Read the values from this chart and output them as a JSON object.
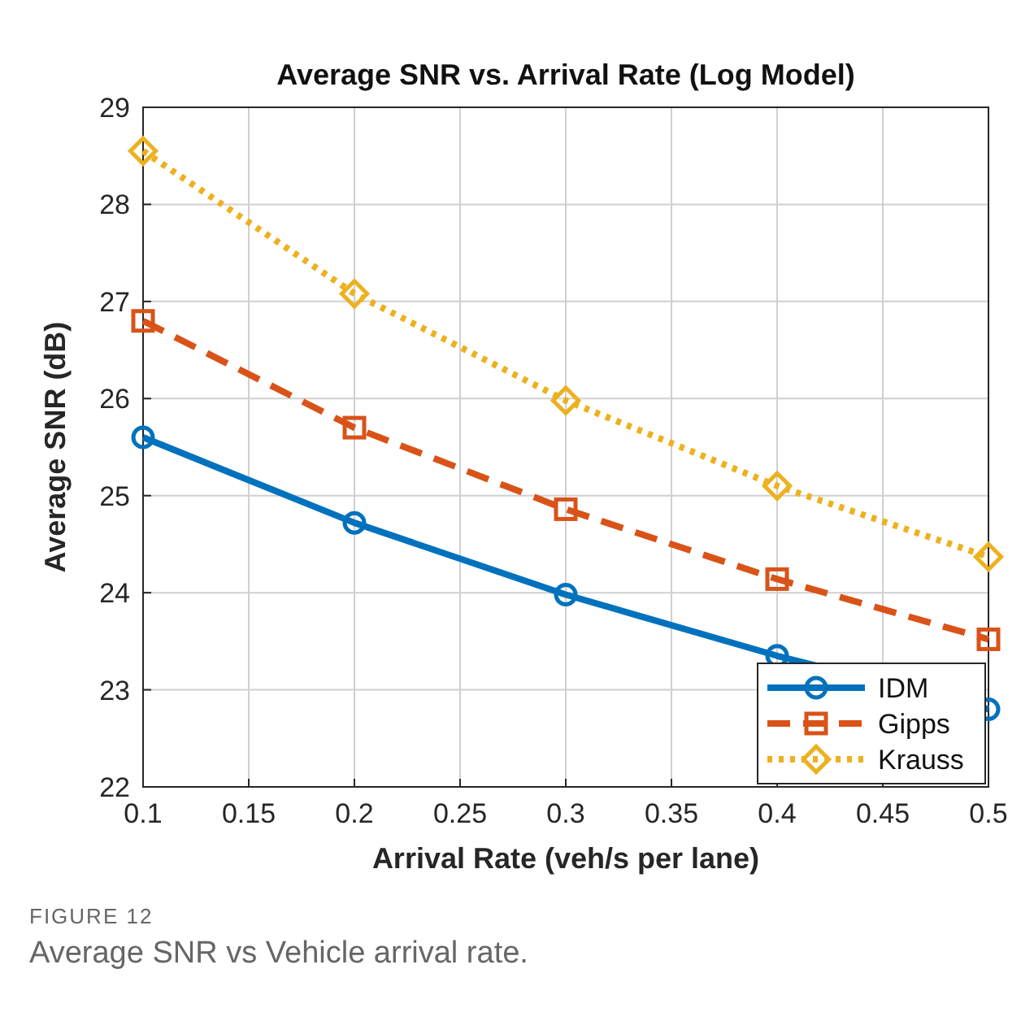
{
  "chart_data": {
    "type": "line",
    "title": "Average SNR vs. Arrival Rate (Log Model)",
    "xlabel": "Arrival Rate (veh/s per lane)",
    "ylabel": "Average SNR (dB)",
    "annotations": [
      "FIGURE 12",
      "Average SNR vs Vehicle arrival rate."
    ],
    "x": [
      0.1,
      0.2,
      0.3,
      0.4,
      0.5
    ],
    "xlim": [
      0.1,
      0.5
    ],
    "xticks": [
      0.1,
      0.15,
      0.2,
      0.25,
      0.3,
      0.35,
      0.4,
      0.45,
      0.5
    ],
    "ylim": [
      22,
      29
    ],
    "yticks": [
      22,
      23,
      24,
      25,
      26,
      27,
      28,
      29
    ],
    "grid": true,
    "legend": "bottom right",
    "series": [
      {
        "name": "IDM",
        "color": "#0072bd",
        "marker": "circle",
        "line_style": "solid",
        "values": [
          25.6,
          24.72,
          23.98,
          23.35,
          22.8
        ]
      },
      {
        "name": "Gipps",
        "color": "#d95319",
        "marker": "square",
        "line_style": "dashed",
        "values": [
          26.8,
          25.7,
          24.86,
          24.14,
          23.52
        ]
      },
      {
        "name": "Krauss",
        "color": "#edb120",
        "marker": "diamond",
        "line_style": "dotted",
        "values": [
          28.55,
          27.08,
          25.98,
          25.1,
          24.37
        ]
      }
    ]
  }
}
